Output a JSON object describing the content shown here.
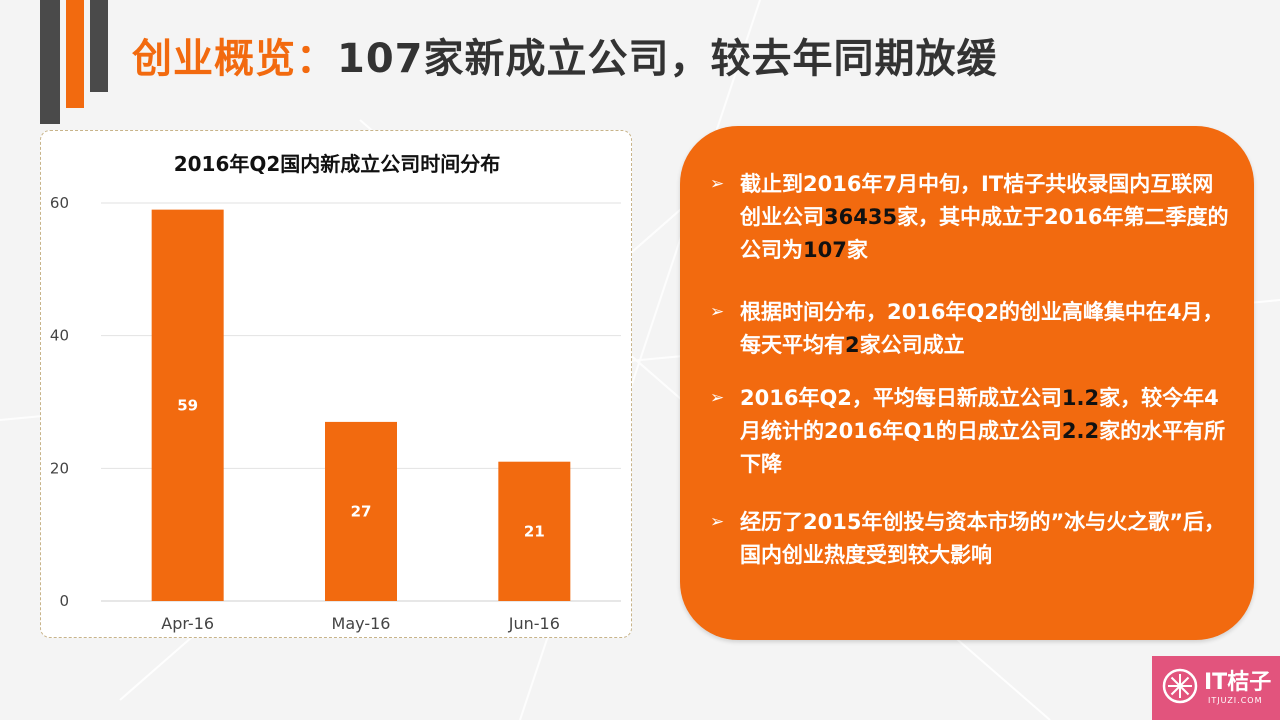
{
  "header": {
    "title_accent": "创业概览：",
    "title_rest": "107家新成立公司，较去年同期放缓"
  },
  "colors": {
    "accent": "#f26a0f",
    "dark": "#4a4a4a",
    "highlight_text": "#111111",
    "logo_bg": "#e2547d"
  },
  "chart_data": {
    "type": "bar",
    "title": "2016年Q2国内新成立公司时间分布",
    "categories": [
      "Apr-16",
      "May-16",
      "Jun-16"
    ],
    "values": [
      59,
      27,
      21
    ],
    "data_labels": [
      "59",
      "27",
      "21"
    ],
    "xlabel": "",
    "ylabel": "",
    "ylim": [
      0,
      60
    ],
    "yticks": [
      0,
      20,
      40,
      60
    ],
    "ytick_labels": [
      "0",
      "20",
      "40",
      "60"
    ],
    "grid": true,
    "legend": false,
    "color": "#f26a0f"
  },
  "info": {
    "bullets": [
      {
        "parts": [
          {
            "text": "截止到2016年7月中旬，IT桔子共收录国内互联网创业公司",
            "highlight": false
          },
          {
            "text": "36435",
            "highlight": true
          },
          {
            "text": "家，其中成立于2016年第二季度的公司为",
            "highlight": false
          },
          {
            "text": "107",
            "highlight": true
          },
          {
            "text": "家",
            "highlight": false
          }
        ]
      },
      {
        "parts": [
          {
            "text": "根据时间分布，2016年Q2的创业高峰集中在4月，每天平均有",
            "highlight": false
          },
          {
            "text": "2",
            "highlight": true
          },
          {
            "text": "家公司成立",
            "highlight": false
          }
        ]
      },
      {
        "parts": [
          {
            "text": "2016年Q2，平均每日新成立公司",
            "highlight": false
          },
          {
            "text": "1.2",
            "highlight": true
          },
          {
            "text": "家，较今年4月统计的2016年Q1的日成立公司",
            "highlight": false
          },
          {
            "text": "2.2",
            "highlight": true
          },
          {
            "text": "家的水平有所下降",
            "highlight": false
          }
        ]
      },
      {
        "parts": [
          {
            "text": "经历了2015年创投与资本市场的”冰与火之歌”后，国内创业热度受到较大影响",
            "highlight": false
          }
        ]
      }
    ]
  },
  "logo": {
    "name": "IT桔子",
    "url_text": "ITJUZI.COM",
    "icon": "orange-slice-icon"
  }
}
